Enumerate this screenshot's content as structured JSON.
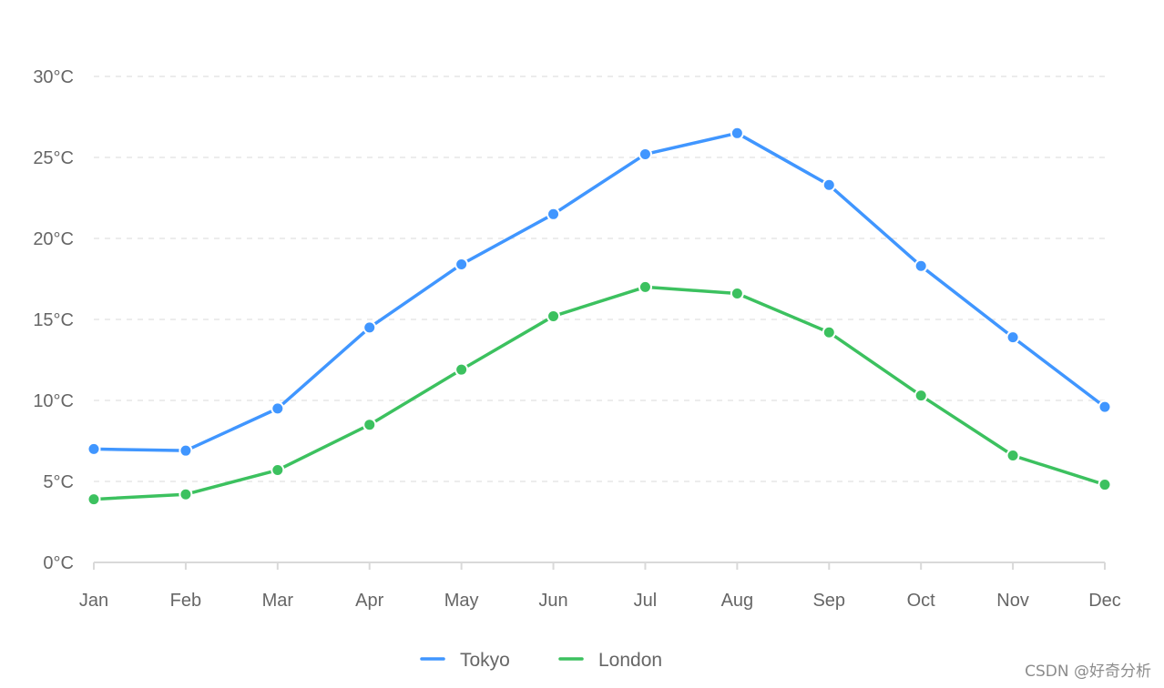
{
  "chart_data": {
    "type": "line",
    "title": "",
    "xlabel": "",
    "ylabel": "",
    "categories": [
      "Jan",
      "Feb",
      "Mar",
      "Apr",
      "May",
      "Jun",
      "Jul",
      "Aug",
      "Sep",
      "Oct",
      "Nov",
      "Dec"
    ],
    "y_ticks": [
      "0°C",
      "5°C",
      "10°C",
      "15°C",
      "20°C",
      "25°C",
      "30°C"
    ],
    "ylim": [
      0,
      30
    ],
    "grid": true,
    "legend_position": "bottom",
    "series": [
      {
        "name": "Tokyo",
        "color": "#4096ff",
        "values": [
          7.0,
          6.9,
          9.5,
          14.5,
          18.4,
          21.5,
          25.2,
          26.5,
          23.3,
          18.3,
          13.9,
          9.6
        ]
      },
      {
        "name": "London",
        "color": "#3cc15f",
        "values": [
          3.9,
          4.2,
          5.7,
          8.5,
          11.9,
          15.2,
          17.0,
          16.6,
          14.2,
          10.3,
          6.6,
          4.8
        ]
      }
    ]
  },
  "watermark": "CSDN @好奇分析"
}
